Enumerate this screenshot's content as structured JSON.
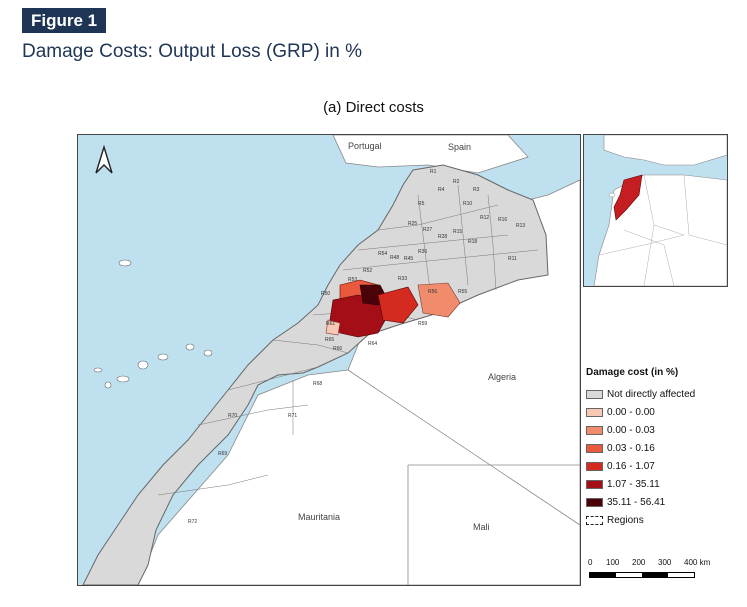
{
  "figure": {
    "label": "Figure 1",
    "title": "Damage Costs: Output Loss (GRP) in %",
    "subtitle": "(a) Direct costs"
  },
  "map": {
    "country_labels": {
      "portugal": "Portugal",
      "spain": "Spain",
      "algeria": "Algeria",
      "mauritania": "Mauritania",
      "mali": "Mali"
    },
    "region_labels": [
      "R1",
      "R2",
      "R3",
      "R4",
      "R5",
      "R10",
      "R11",
      "R12",
      "R13",
      "R15",
      "R16",
      "R18",
      "R25",
      "R27",
      "R28",
      "R33",
      "R36",
      "R45",
      "R48",
      "R50",
      "R52",
      "R53",
      "R54",
      "R55",
      "R56",
      "R59",
      "R61",
      "R64",
      "R65",
      "R66",
      "R68",
      "R69",
      "R70",
      "R71",
      "R72"
    ],
    "colors": {
      "sea": "#bfe0ef",
      "land": "#ffffff",
      "not_affected": "#d9d9d9",
      "c1": "#f7c8b4",
      "c2": "#f08c6c",
      "c3": "#e9593e",
      "c4": "#d42a20",
      "c5": "#a40f17",
      "c6": "#4a0309"
    }
  },
  "legend": {
    "title": "Damage cost (in %)",
    "items": [
      {
        "label": "Not directly affected",
        "color": "#d9d9d9"
      },
      {
        "label": "0.00 - 0.00",
        "color": "#f7c8b4"
      },
      {
        "label": "0.00 - 0.03",
        "color": "#f08c6c"
      },
      {
        "label": "0.03 - 0.16",
        "color": "#e9593e"
      },
      {
        "label": "0.16 - 1.07",
        "color": "#d42a20"
      },
      {
        "label": "1.07 - 35.11",
        "color": "#a40f17"
      },
      {
        "label": "35.11 - 56.41",
        "color": "#4a0309"
      },
      {
        "label": "Regions",
        "color": "dashed"
      }
    ]
  },
  "scale": {
    "ticks": [
      "0",
      "100",
      "200",
      "300",
      "400 km"
    ]
  },
  "north_arrow": "north-arrow-icon"
}
